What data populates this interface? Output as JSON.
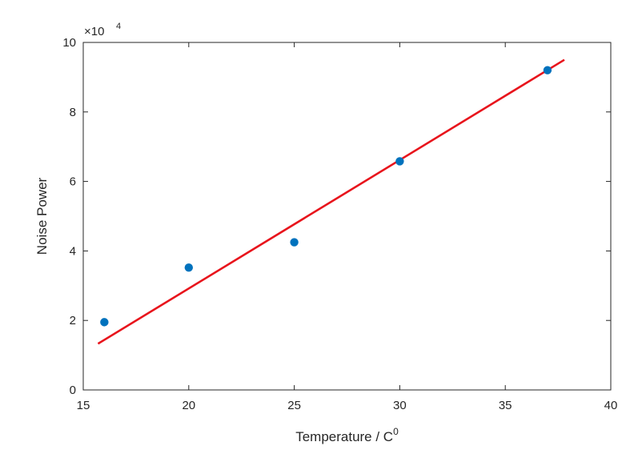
{
  "chart_data": {
    "type": "scatter",
    "title": "",
    "xlabel": "Temperature / C",
    "xlabel_superscript": "0",
    "ylabel": "Noise Power",
    "y_multiplier": "×10",
    "y_multiplier_exponent": "4",
    "xlim": [
      15,
      40
    ],
    "ylim": [
      0,
      10
    ],
    "xticks": [
      15,
      20,
      25,
      30,
      35,
      40
    ],
    "yticks": [
      0,
      2,
      4,
      6,
      8,
      10
    ],
    "grid": false,
    "series": [
      {
        "type": "scatter",
        "marker_color": "#0072BD",
        "points": [
          {
            "x": 16,
            "y": 1.95
          },
          {
            "x": 20,
            "y": 3.52
          },
          {
            "x": 25,
            "y": 4.25
          },
          {
            "x": 30,
            "y": 6.58
          },
          {
            "x": 37,
            "y": 9.2
          }
        ]
      },
      {
        "type": "line",
        "line_color": "#E8141C",
        "points": [
          {
            "x": 15.7,
            "y": 1.33
          },
          {
            "x": 37.8,
            "y": 9.5
          }
        ]
      }
    ]
  }
}
